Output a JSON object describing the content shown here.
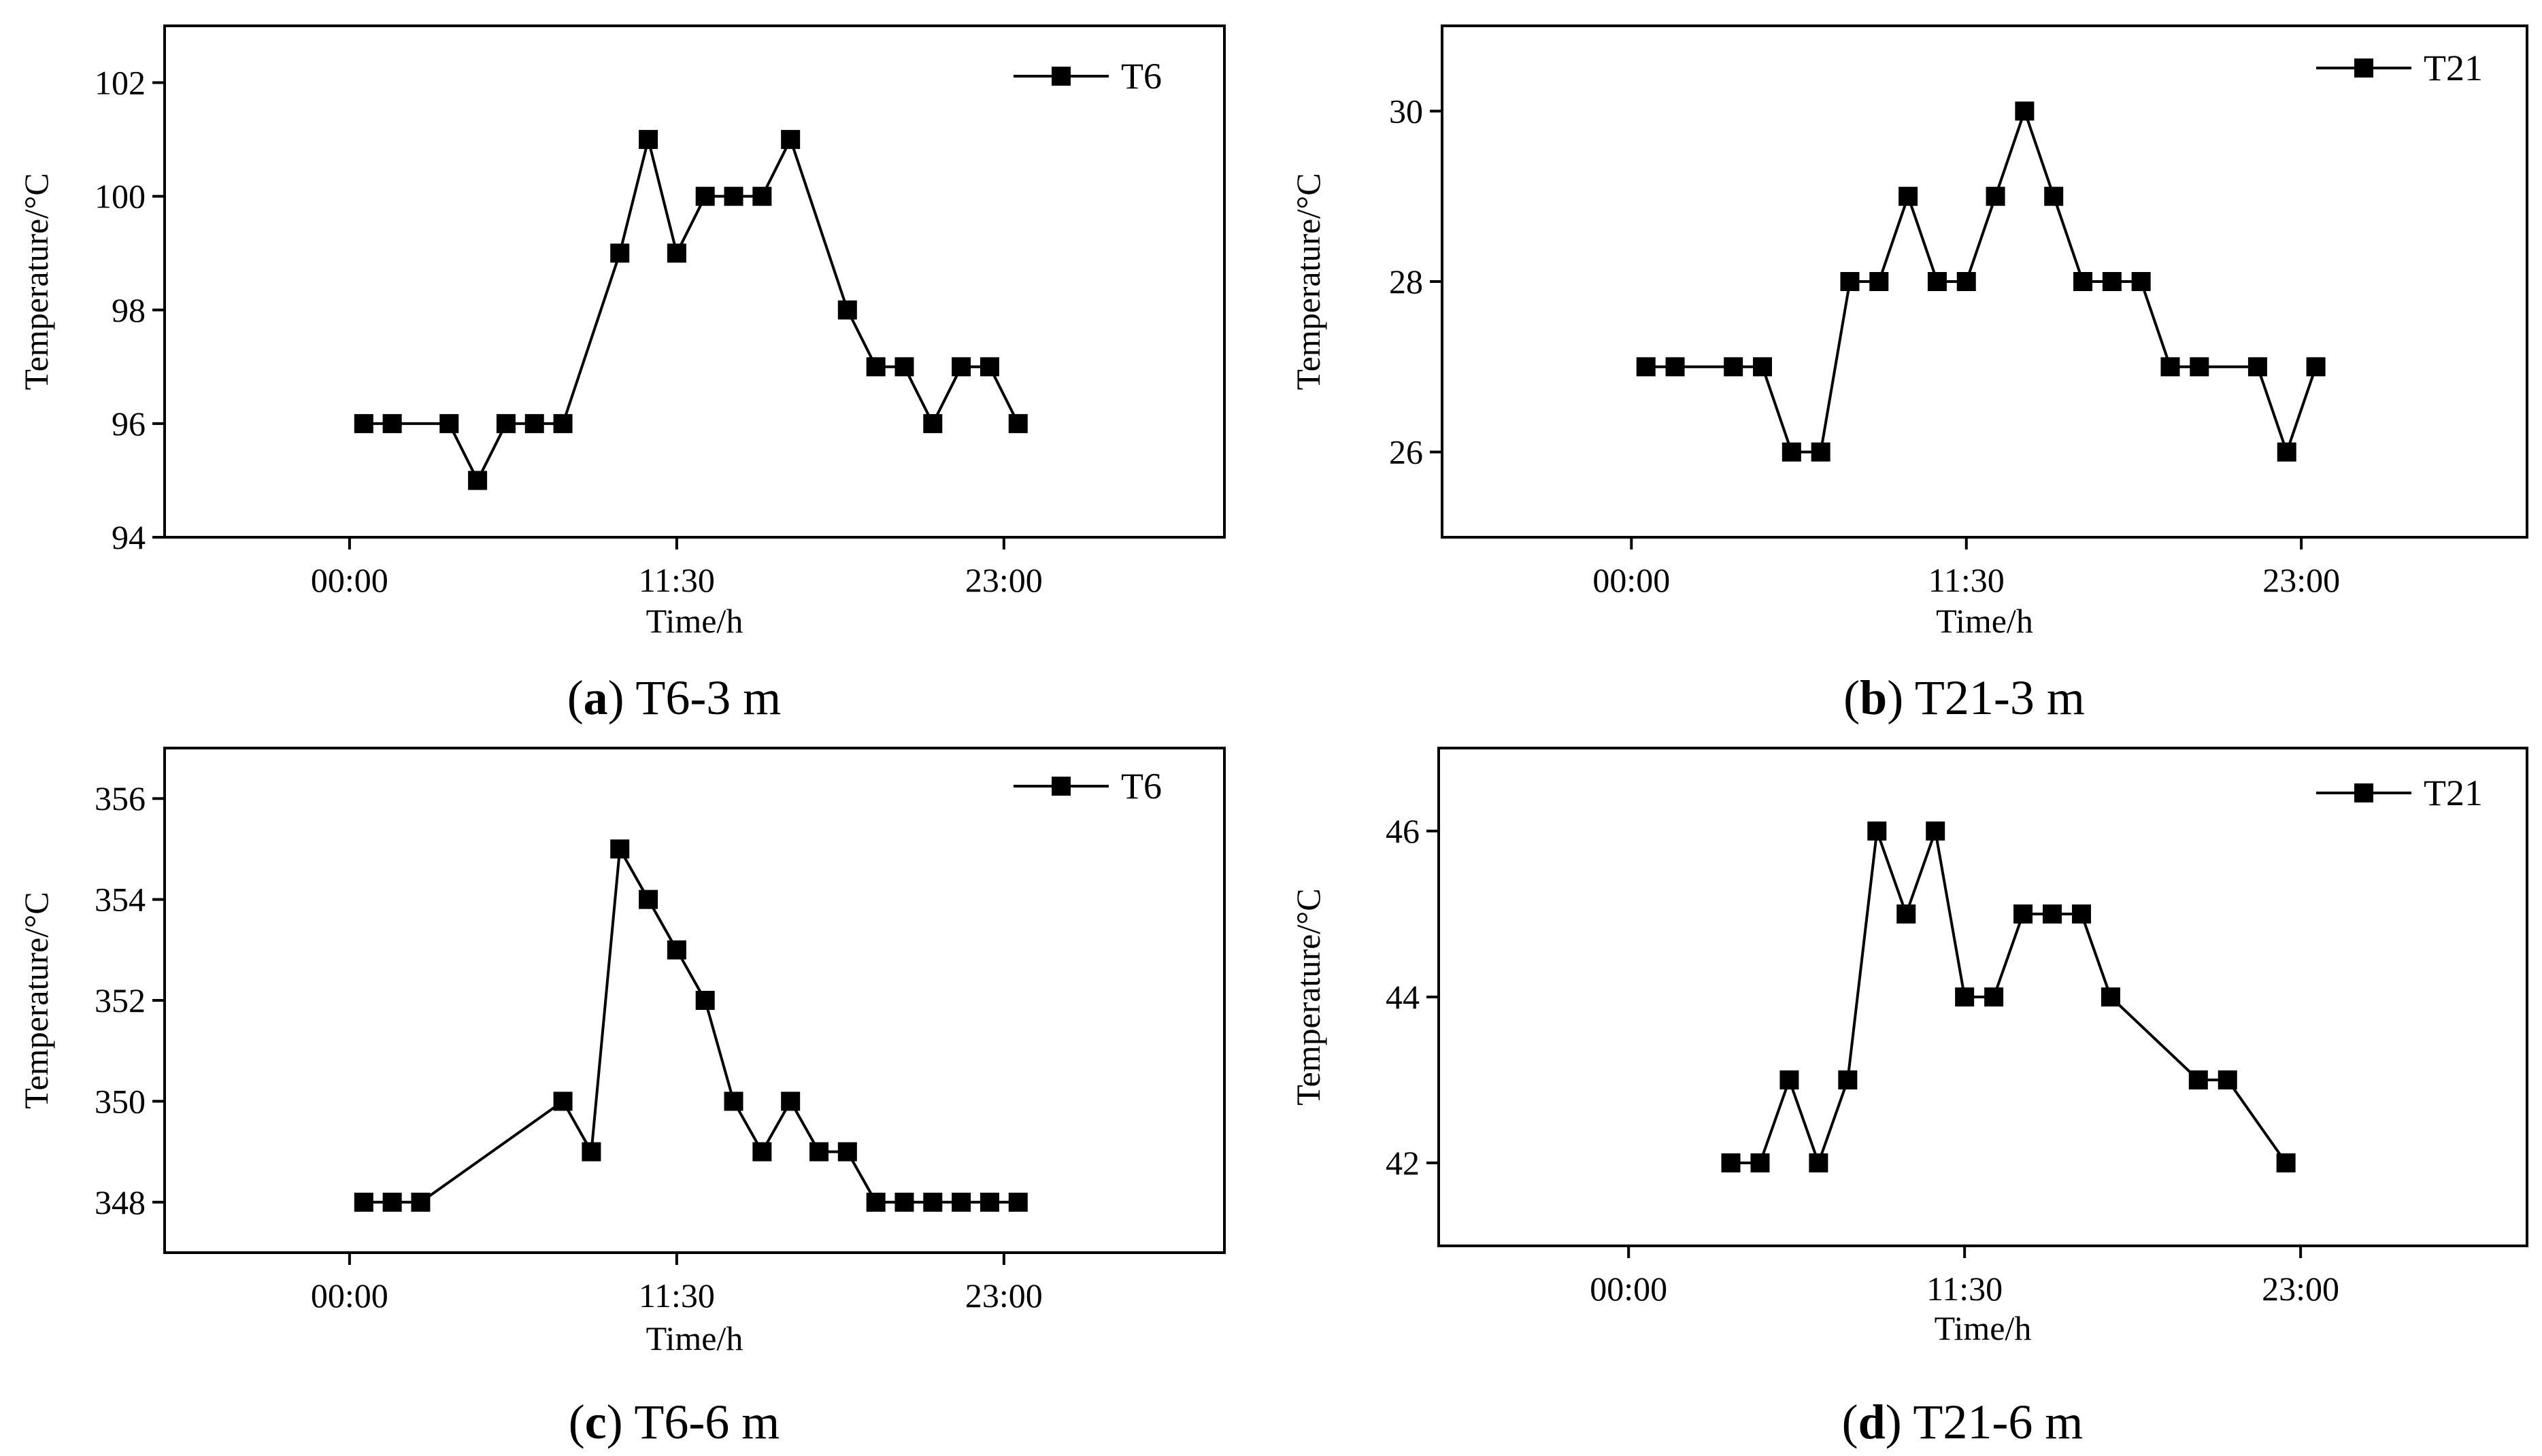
{
  "chart_data": [
    {
      "type": "line",
      "panel": "a",
      "caption_letter": "a",
      "caption_text": "T6-3 m",
      "xlabel": "Time/h",
      "ylabel": "Temperature/°C",
      "xlim": [
        -6.5,
        30.75
      ],
      "ylim": [
        94,
        103
      ],
      "yticks": [
        94,
        96,
        98,
        100,
        102
      ],
      "xticks": [
        0,
        11.5,
        23
      ],
      "xtick_labels": [
        "00:00",
        "11:30",
        "23:00"
      ],
      "legend": "top-right",
      "series": [
        {
          "name": "T6",
          "x": [
            0.5,
            1.5,
            3.5,
            4.5,
            5.5,
            6.5,
            7.5,
            9.5,
            10.5,
            11.5,
            12.5,
            13.5,
            14.5,
            15.5,
            17.5,
            18.5,
            19.5,
            20.5,
            21.5,
            22.5,
            23.5
          ],
          "y": [
            96,
            96,
            96,
            95,
            96,
            96,
            96,
            99,
            101,
            99,
            100,
            100,
            100,
            101,
            98,
            97,
            97,
            96,
            97,
            97,
            96
          ]
        }
      ]
    },
    {
      "type": "line",
      "panel": "b",
      "caption_letter": "b",
      "caption_text": "T21-3 m",
      "xlabel": "Time/h",
      "ylabel": "Temperature/°C",
      "xlim": [
        -6.5,
        30.75
      ],
      "ylim": [
        25,
        31
      ],
      "yticks": [
        26,
        28,
        30
      ],
      "xticks": [
        0,
        11.5,
        23
      ],
      "xtick_labels": [
        "00:00",
        "11:30",
        "23:00"
      ],
      "legend": "top-right",
      "series": [
        {
          "name": "T21",
          "x": [
            0.5,
            1.5,
            3.5,
            4.5,
            5.5,
            6.5,
            7.5,
            8.5,
            9.5,
            10.5,
            11.5,
            12.5,
            13.5,
            14.5,
            15.5,
            16.5,
            17.5,
            18.5,
            19.5,
            21.5,
            22.5,
            23.5
          ],
          "y": [
            27,
            27,
            27,
            27,
            26,
            26,
            28,
            28,
            29,
            28,
            28,
            29,
            30,
            29,
            28,
            28,
            28,
            27,
            27,
            27,
            26,
            27
          ]
        }
      ]
    },
    {
      "type": "line",
      "panel": "c",
      "caption_letter": "c",
      "caption_text": "T6-6 m",
      "xlabel": "Time/h",
      "ylabel": "Temperature/°C",
      "xlim": [
        -6.5,
        30.75
      ],
      "ylim": [
        347,
        357
      ],
      "yticks": [
        348,
        350,
        352,
        354,
        356
      ],
      "xticks": [
        0,
        11.5,
        23
      ],
      "xtick_labels": [
        "00:00",
        "11:30",
        "23:00"
      ],
      "legend": "top-right",
      "series": [
        {
          "name": "T6",
          "x": [
            0.5,
            1.5,
            2.5,
            7.5,
            8.5,
            9.5,
            10.5,
            11.5,
            12.5,
            13.5,
            14.5,
            15.5,
            16.5,
            17.5,
            18.5,
            19.5,
            20.5,
            21.5,
            22.5,
            23.5
          ],
          "y": [
            348,
            348,
            348,
            350,
            349,
            355,
            354,
            353,
            352,
            350,
            349,
            350,
            349,
            349,
            348,
            348,
            348,
            348,
            348,
            348
          ]
        }
      ]
    },
    {
      "type": "line",
      "panel": "d",
      "caption_letter": "d",
      "caption_text": "T21-6 m",
      "xlabel": "Time/h",
      "ylabel": "Temperature/°C",
      "xlim": [
        -6.5,
        30.75
      ],
      "ylim": [
        41,
        47
      ],
      "yticks": [
        42,
        44,
        46
      ],
      "xticks": [
        0,
        11.5,
        23
      ],
      "xtick_labels": [
        "00:00",
        "11:30",
        "23:00"
      ],
      "legend": "top-right",
      "series": [
        {
          "name": "T21",
          "x": [
            3.5,
            4.5,
            5.5,
            6.5,
            7.5,
            8.5,
            9.5,
            10.5,
            11.5,
            12.5,
            13.5,
            14.5,
            15.5,
            16.5,
            19.5,
            20.5,
            22.5
          ],
          "y": [
            42,
            42,
            43,
            42,
            43,
            46,
            45,
            46,
            44,
            44,
            45,
            45,
            45,
            44,
            43,
            43,
            42
          ]
        }
      ]
    }
  ]
}
